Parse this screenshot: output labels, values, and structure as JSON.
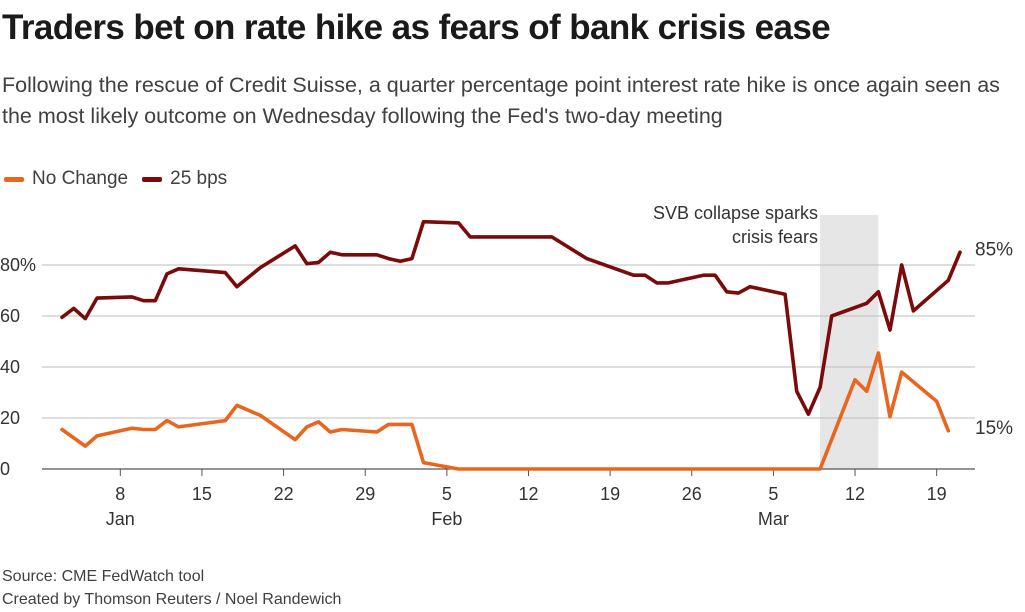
{
  "title": "Traders bet on rate hike as fears of bank crisis ease",
  "subtitle": "Following the rescue of Credit Suisse, a quarter percentage point interest rate hike is once again seen as the most likely outcome on Wednesday following the Fed's two-day meeting",
  "source": "Source: CME FedWatch tool",
  "credit": "Created by Thomson Reuters / Noel Randewich",
  "colors": {
    "no_change": "#e8661e",
    "bps25": "#7b0a0a",
    "grid": "#bdbdbd",
    "shade": "#e6e6e6"
  },
  "chart_data": {
    "type": "line",
    "title": "Traders bet on rate hike as fears of bank crisis ease",
    "legend": "top-left",
    "grid": "horizontal",
    "ylim": [
      0,
      100
    ],
    "xlim": [
      "2023-01-03",
      "2023-03-21"
    ],
    "y_ticks": [
      {
        "value": 0,
        "label": "0"
      },
      {
        "value": 20,
        "label": "20"
      },
      {
        "value": 40,
        "label": "40"
      },
      {
        "value": 60,
        "label": "60"
      },
      {
        "value": 80,
        "label": "80%"
      }
    ],
    "x_ticks": [
      {
        "date": "2023-01-08",
        "label": "8"
      },
      {
        "date": "2023-01-15",
        "label": "15"
      },
      {
        "date": "2023-01-22",
        "label": "22"
      },
      {
        "date": "2023-01-29",
        "label": "29"
      },
      {
        "date": "2023-02-05",
        "label": "5"
      },
      {
        "date": "2023-02-12",
        "label": "12"
      },
      {
        "date": "2023-02-19",
        "label": "19"
      },
      {
        "date": "2023-02-26",
        "label": "26"
      },
      {
        "date": "2023-03-05",
        "label": "5"
      },
      {
        "date": "2023-03-12",
        "label": "12"
      },
      {
        "date": "2023-03-19",
        "label": "19"
      }
    ],
    "month_labels": [
      {
        "date": "2023-01-08",
        "label": "Jan"
      },
      {
        "date": "2023-02-05",
        "label": "Feb"
      },
      {
        "date": "2023-03-05",
        "label": "Mar"
      }
    ],
    "annotation": {
      "lines": [
        "SVB collapse sparks",
        "crisis fears"
      ],
      "from": "2023-03-09",
      "to": "2023-03-14"
    },
    "series": [
      {
        "name": "No Change",
        "color": "#e8661e",
        "end_label": "15%",
        "points": [
          [
            "2023-01-03",
            15.5
          ],
          [
            "2023-01-05",
            9
          ],
          [
            "2023-01-06",
            13
          ],
          [
            "2023-01-09",
            16
          ],
          [
            "2023-01-10",
            15.5
          ],
          [
            "2023-01-11",
            15.5
          ],
          [
            "2023-01-12",
            19
          ],
          [
            "2023-01-13",
            16.5
          ],
          [
            "2023-01-17",
            19
          ],
          [
            "2023-01-18",
            25
          ],
          [
            "2023-01-20",
            21
          ],
          [
            "2023-01-23",
            11.5
          ],
          [
            "2023-01-24",
            16.5
          ],
          [
            "2023-01-25",
            18.5
          ],
          [
            "2023-01-26",
            14.5
          ],
          [
            "2023-01-27",
            15.5
          ],
          [
            "2023-01-30",
            14.5
          ],
          [
            "2023-01-31",
            17.5
          ],
          [
            "2023-02-01",
            17.5
          ],
          [
            "2023-02-02",
            17.5
          ],
          [
            "2023-02-03",
            2.5
          ],
          [
            "2023-02-06",
            0
          ],
          [
            "2023-02-13",
            0
          ],
          [
            "2023-02-20",
            0
          ],
          [
            "2023-02-27",
            0
          ],
          [
            "2023-03-06",
            0
          ],
          [
            "2023-03-09",
            0
          ],
          [
            "2023-03-12",
            35
          ],
          [
            "2023-03-13",
            30.5
          ],
          [
            "2023-03-14",
            45.5
          ],
          [
            "2023-03-15",
            20.5
          ],
          [
            "2023-03-16",
            38
          ],
          [
            "2023-03-19",
            26.5
          ],
          [
            "2023-03-20",
            15
          ]
        ]
      },
      {
        "name": "25 bps",
        "color": "#7b0a0a",
        "end_label": "85%",
        "points": [
          [
            "2023-01-03",
            59.5
          ],
          [
            "2023-01-04",
            63
          ],
          [
            "2023-01-05",
            59
          ],
          [
            "2023-01-06",
            67
          ],
          [
            "2023-01-09",
            67.5
          ],
          [
            "2023-01-10",
            66
          ],
          [
            "2023-01-11",
            66
          ],
          [
            "2023-01-12",
            76.5
          ],
          [
            "2023-01-13",
            78.5
          ],
          [
            "2023-01-17",
            77
          ],
          [
            "2023-01-18",
            71.5
          ],
          [
            "2023-01-20",
            79
          ],
          [
            "2023-01-23",
            87.5
          ],
          [
            "2023-01-24",
            80.5
          ],
          [
            "2023-01-25",
            81
          ],
          [
            "2023-01-26",
            85
          ],
          [
            "2023-01-27",
            84
          ],
          [
            "2023-01-30",
            84
          ],
          [
            "2023-01-31",
            82.5
          ],
          [
            "2023-02-01",
            81.5
          ],
          [
            "2023-02-02",
            82.5
          ],
          [
            "2023-02-03",
            97
          ],
          [
            "2023-02-06",
            96.5
          ],
          [
            "2023-02-07",
            91
          ],
          [
            "2023-02-14",
            91
          ],
          [
            "2023-02-17",
            82.5
          ],
          [
            "2023-02-21",
            76
          ],
          [
            "2023-02-22",
            76
          ],
          [
            "2023-02-23",
            73
          ],
          [
            "2023-02-24",
            73
          ],
          [
            "2023-02-27",
            76
          ],
          [
            "2023-02-28",
            76
          ],
          [
            "2023-03-01",
            69.5
          ],
          [
            "2023-03-02",
            69
          ],
          [
            "2023-03-03",
            71.5
          ],
          [
            "2023-03-06",
            68.5
          ],
          [
            "2023-03-07",
            30.5
          ],
          [
            "2023-03-08",
            21.5
          ],
          [
            "2023-03-09",
            32
          ],
          [
            "2023-03-10",
            60
          ],
          [
            "2023-03-13",
            65
          ],
          [
            "2023-03-14",
            69.5
          ],
          [
            "2023-03-15",
            54.5
          ],
          [
            "2023-03-16",
            80
          ],
          [
            "2023-03-17",
            62
          ],
          [
            "2023-03-20",
            74
          ],
          [
            "2023-03-21",
            85
          ]
        ]
      }
    ]
  }
}
